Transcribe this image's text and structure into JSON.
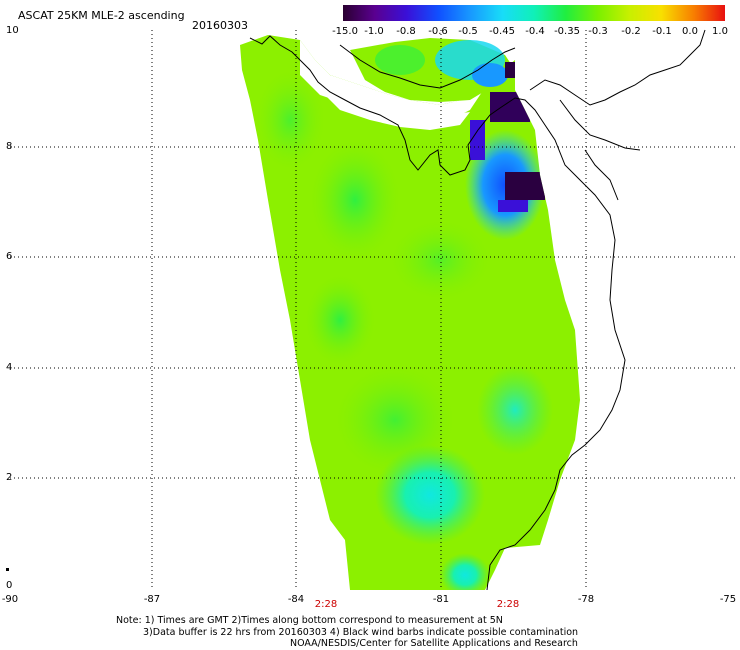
{
  "title": "ASCAT 25KM MLE-2 ascending",
  "date": "20160303",
  "colorbar": {
    "labels": [
      "-15.0",
      "-1.0",
      "-0.8",
      "-0.6",
      "-0.5",
      "-0.45",
      "-0.4",
      "-0.35",
      "-0.3",
      "-0.2",
      "-0.1",
      "0.0",
      "1.0"
    ],
    "colors": [
      "#2a0030",
      "#5a0090",
      "#3a10d8",
      "#1050ff",
      "#1898ff",
      "#18dcf8",
      "#10f0b8",
      "#20ee40",
      "#7af000",
      "#c8f000",
      "#f8e000",
      "#f88000",
      "#e81010"
    ]
  },
  "axes": {
    "x_ticks": [
      "-90",
      "-87",
      "-84",
      "-81",
      "-78",
      "-75"
    ],
    "y_ticks": [
      "10",
      "8",
      "6",
      "4",
      "2",
      "0"
    ],
    "time_labels": [
      "2:28",
      "2:28"
    ]
  },
  "notes": [
    "Note: 1) Times are GMT 2)Times along bottom correspond to measurement at 5N",
    "3)Data buffer is 22 hrs from 20160303 4) Black wind barbs indicate possible contamination",
    "NOAA/NESDIS/Center for Satellite Applications and Research"
  ]
}
